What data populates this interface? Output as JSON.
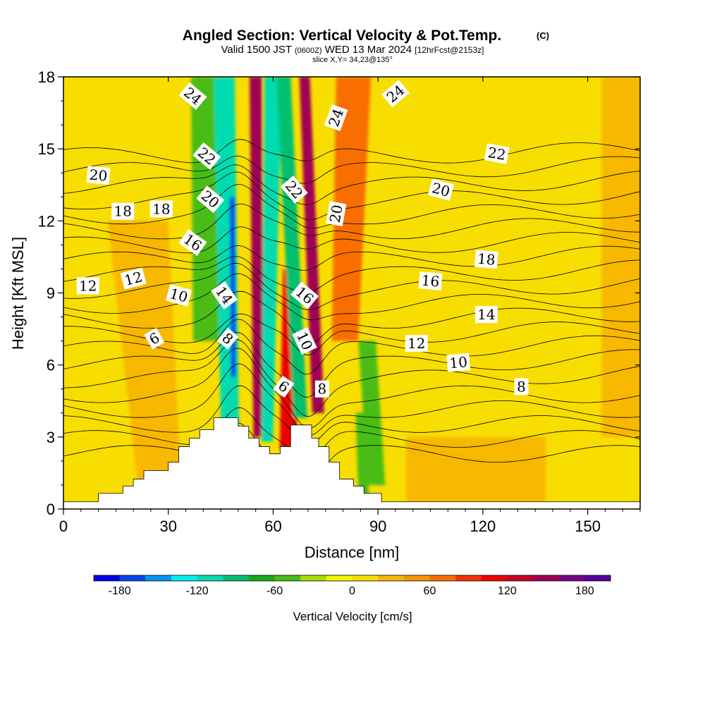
{
  "figure": {
    "title": "Angled Section: Vertical Velocity & Pot.Temp.",
    "title_tag": "(C)",
    "subtitle_parts": [
      "Valid 1500 JST",
      "(0600Z)",
      "WED 13 Mar 2024",
      "[12hrFcst@2153z]"
    ],
    "slice_note": "slice X,Y= 34,23@135°"
  },
  "chart_data": {
    "type": "heatmap",
    "title": "Angled Section: Vertical Velocity & Pot.Temp.",
    "xlabel": "Distance [nm]",
    "ylabel": "Height [Kft MSL]",
    "xlim": [
      0,
      165
    ],
    "ylim": [
      0,
      18
    ],
    "x_ticks": [
      0,
      30,
      60,
      90,
      120,
      150
    ],
    "y_ticks": [
      0,
      3,
      6,
      9,
      12,
      15,
      18
    ],
    "colorbar": {
      "label": "Vertical Velocity [cm/s]",
      "ticks": [
        -180,
        -120,
        -60,
        0,
        60,
        120,
        180
      ],
      "levels": [
        -200,
        -180,
        -160,
        -140,
        -120,
        -100,
        -80,
        -60,
        -40,
        -20,
        0,
        20,
        40,
        60,
        80,
        100,
        120,
        140,
        160,
        180,
        200
      ],
      "colors": [
        "#0000e6",
        "#0047ee",
        "#0095ee",
        "#00eef0",
        "#00dcb0",
        "#00c070",
        "#1aa816",
        "#49bd19",
        "#a6de00",
        "#f4f400",
        "#f8de00",
        "#f8b800",
        "#f89400",
        "#f86e00",
        "#f83000",
        "#ee0000",
        "#c80026",
        "#a00054",
        "#7a008c",
        "#5a00a0"
      ]
    },
    "background_fill_cms": 5,
    "terrain_profile_kft": [
      [
        0,
        0.3
      ],
      [
        10,
        0.3
      ],
      [
        10,
        0.65
      ],
      [
        17,
        0.65
      ],
      [
        17,
        0.95
      ],
      [
        20,
        0.95
      ],
      [
        20,
        1.25
      ],
      [
        23,
        1.25
      ],
      [
        23,
        1.6
      ],
      [
        30,
        1.6
      ],
      [
        30,
        1.95
      ],
      [
        33,
        1.95
      ],
      [
        33,
        2.6
      ],
      [
        36,
        2.6
      ],
      [
        36,
        2.95
      ],
      [
        39,
        2.95
      ],
      [
        39,
        3.3
      ],
      [
        43,
        3.3
      ],
      [
        43,
        3.8
      ],
      [
        50,
        3.8
      ],
      [
        50,
        3.45
      ],
      [
        53,
        3.45
      ],
      [
        53,
        2.95
      ],
      [
        56,
        2.95
      ],
      [
        56,
        2.6
      ],
      [
        59,
        2.6
      ],
      [
        59,
        2.3
      ],
      [
        62,
        2.3
      ],
      [
        62,
        2.6
      ],
      [
        65,
        2.6
      ],
      [
        65,
        3.5
      ],
      [
        71,
        3.5
      ],
      [
        71,
        2.95
      ],
      [
        73,
        2.95
      ],
      [
        73,
        2.6
      ],
      [
        76,
        2.6
      ],
      [
        76,
        1.95
      ],
      [
        79,
        1.95
      ],
      [
        79,
        1.25
      ],
      [
        83,
        1.25
      ],
      [
        83,
        0.95
      ],
      [
        86,
        0.95
      ],
      [
        86,
        0.65
      ],
      [
        91,
        0.65
      ],
      [
        91,
        0.3
      ],
      [
        165,
        0.3
      ]
    ],
    "vertical_velocity_features": [
      {
        "shape": "band",
        "value_cms": -60,
        "x_top": 41,
        "x_bottom": 41,
        "width_top": 9,
        "width_bottom": 7,
        "y_from": 7,
        "y_to": 18
      },
      {
        "shape": "band",
        "value_cms": -110,
        "x_top": 46,
        "x_bottom": 48,
        "width_top": 6,
        "width_bottom": 5,
        "y_from": 3.4,
        "y_to": 18
      },
      {
        "shape": "band",
        "value_cms": -180,
        "x_top": 48,
        "x_bottom": 49,
        "width_top": 1.6,
        "width_bottom": 1.4,
        "y_from": 5.5,
        "y_to": 13
      },
      {
        "shape": "band",
        "value_cms": 150,
        "x_top": 55,
        "x_bottom": 56,
        "width_top": 3.5,
        "width_bottom": 2.8,
        "y_from": 3,
        "y_to": 18
      },
      {
        "shape": "band",
        "value_cms": -110,
        "x_top": 60,
        "x_bottom": 58,
        "width_top": 5,
        "width_bottom": 3,
        "y_from": 2.8,
        "y_to": 18
      },
      {
        "shape": "band",
        "value_cms": 100,
        "x_top": 66,
        "x_bottom": 64,
        "width_top": 4,
        "width_bottom": 5,
        "y_from": 2.5,
        "y_to": 10
      },
      {
        "shape": "band",
        "value_cms": -170,
        "x_top": 63,
        "x_bottom": 69,
        "width_top": 1.4,
        "width_bottom": 1.6,
        "y_from": 4,
        "y_to": 18
      },
      {
        "shape": "band",
        "value_cms": -100,
        "x_top": 63,
        "x_bottom": 69,
        "width_top": 4,
        "width_bottom": 4,
        "y_from": 3.8,
        "y_to": 18
      },
      {
        "shape": "band",
        "value_cms": 150,
        "x_top": 69,
        "x_bottom": 74,
        "width_top": 3,
        "width_bottom": 3.5,
        "y_from": 4,
        "y_to": 18
      },
      {
        "shape": "band",
        "value_cms": 60,
        "x_top": 83,
        "x_bottom": 79,
        "width_top": 10,
        "width_bottom": 6,
        "y_from": 7,
        "y_to": 18
      },
      {
        "shape": "band",
        "value_cms": -55,
        "x_top": 82,
        "x_bottom": 86,
        "width_top": 3,
        "width_bottom": 3,
        "y_from": 0.5,
        "y_to": 4
      },
      {
        "shape": "band",
        "value_cms": -60,
        "x_top": 82,
        "x_bottom": 90,
        "width_top": 5,
        "width_bottom": 5,
        "y_from": 1,
        "y_to": 7
      },
      {
        "shape": "band",
        "value_cms": 20,
        "x_top": 18,
        "x_bottom": 28,
        "width_top": 20,
        "width_bottom": 12,
        "y_from": 0.3,
        "y_to": 12
      },
      {
        "shape": "band",
        "value_cms": 20,
        "x_top": 118,
        "x_bottom": 118,
        "width_top": 40,
        "width_bottom": 40,
        "y_from": 0.3,
        "y_to": 3
      },
      {
        "shape": "band",
        "value_cms": 20,
        "x_top": 160,
        "x_bottom": 160,
        "width_top": 12,
        "width_bottom": 12,
        "y_from": 3,
        "y_to": 18
      }
    ],
    "potential_temperature_labels": [
      {
        "value": "24",
        "x": 37,
        "y": 17.2,
        "angle": 40
      },
      {
        "value": "22",
        "x": 41,
        "y": 14.7,
        "angle": 40
      },
      {
        "value": "20",
        "x": 42,
        "y": 12.9,
        "angle": 40
      },
      {
        "value": "20",
        "x": 10,
        "y": 13.9,
        "angle": 5
      },
      {
        "value": "18",
        "x": 17,
        "y": 12.4,
        "angle": 0
      },
      {
        "value": "18",
        "x": 28,
        "y": 12.5,
        "angle": 0
      },
      {
        "value": "16",
        "x": 37,
        "y": 11.1,
        "angle": 35
      },
      {
        "value": "12",
        "x": 7,
        "y": 9.3,
        "angle": 0
      },
      {
        "value": "12",
        "x": 20,
        "y": 9.6,
        "angle": -15
      },
      {
        "value": "10",
        "x": 33,
        "y": 8.9,
        "angle": 15
      },
      {
        "value": "6",
        "x": 26,
        "y": 7.1,
        "angle": -30
      },
      {
        "value": "14",
        "x": 46,
        "y": 8.9,
        "angle": 55
      },
      {
        "value": "8",
        "x": 47,
        "y": 7.1,
        "angle": 40
      },
      {
        "value": "24",
        "x": 78,
        "y": 16.3,
        "angle": -70
      },
      {
        "value": "22",
        "x": 66,
        "y": 13.3,
        "angle": 50
      },
      {
        "value": "20",
        "x": 78,
        "y": 12.3,
        "angle": -80
      },
      {
        "value": "16",
        "x": 69,
        "y": 8.9,
        "angle": 40
      },
      {
        "value": "10",
        "x": 69,
        "y": 7.0,
        "angle": 65
      },
      {
        "value": "6",
        "x": 63,
        "y": 5.1,
        "angle": 35
      },
      {
        "value": "8",
        "x": 74,
        "y": 5.0,
        "angle": 0
      },
      {
        "value": "24",
        "x": 95,
        "y": 17.3,
        "angle": -40
      },
      {
        "value": "22",
        "x": 124,
        "y": 14.8,
        "angle": 10
      },
      {
        "value": "20",
        "x": 108,
        "y": 13.3,
        "angle": 15
      },
      {
        "value": "18",
        "x": 121,
        "y": 10.4,
        "angle": 5
      },
      {
        "value": "16",
        "x": 105,
        "y": 9.5,
        "angle": 5
      },
      {
        "value": "14",
        "x": 121,
        "y": 8.1,
        "angle": 0
      },
      {
        "value": "12",
        "x": 101,
        "y": 6.9,
        "angle": 0
      },
      {
        "value": "10",
        "x": 113,
        "y": 6.1,
        "angle": -5
      },
      {
        "value": "8",
        "x": 131,
        "y": 5.1,
        "angle": 0
      }
    ]
  }
}
